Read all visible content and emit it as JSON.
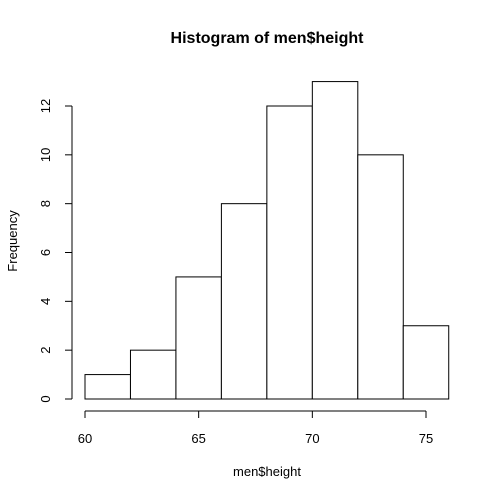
{
  "chart_data": {
    "type": "bar",
    "title": "Histogram of men$height",
    "xlabel": "men$height",
    "ylabel": "Frequency",
    "bins": [
      {
        "start": 60,
        "end": 62,
        "count": 1
      },
      {
        "start": 62,
        "end": 64,
        "count": 2
      },
      {
        "start": 64,
        "end": 66,
        "count": 5
      },
      {
        "start": 66,
        "end": 68,
        "count": 8
      },
      {
        "start": 68,
        "end": 70,
        "count": 12
      },
      {
        "start": 70,
        "end": 72,
        "count": 13
      },
      {
        "start": 72,
        "end": 74,
        "count": 10
      },
      {
        "start": 74,
        "end": 76,
        "count": 3
      }
    ],
    "x_ticks": [
      60,
      65,
      70,
      75
    ],
    "y_ticks": [
      0,
      2,
      4,
      6,
      8,
      10,
      12
    ],
    "xlim": [
      60,
      76
    ],
    "ylim": [
      0,
      13
    ],
    "grid": false,
    "colors": {
      "bar_fill": "#ffffff",
      "bar_stroke": "#000000"
    }
  }
}
